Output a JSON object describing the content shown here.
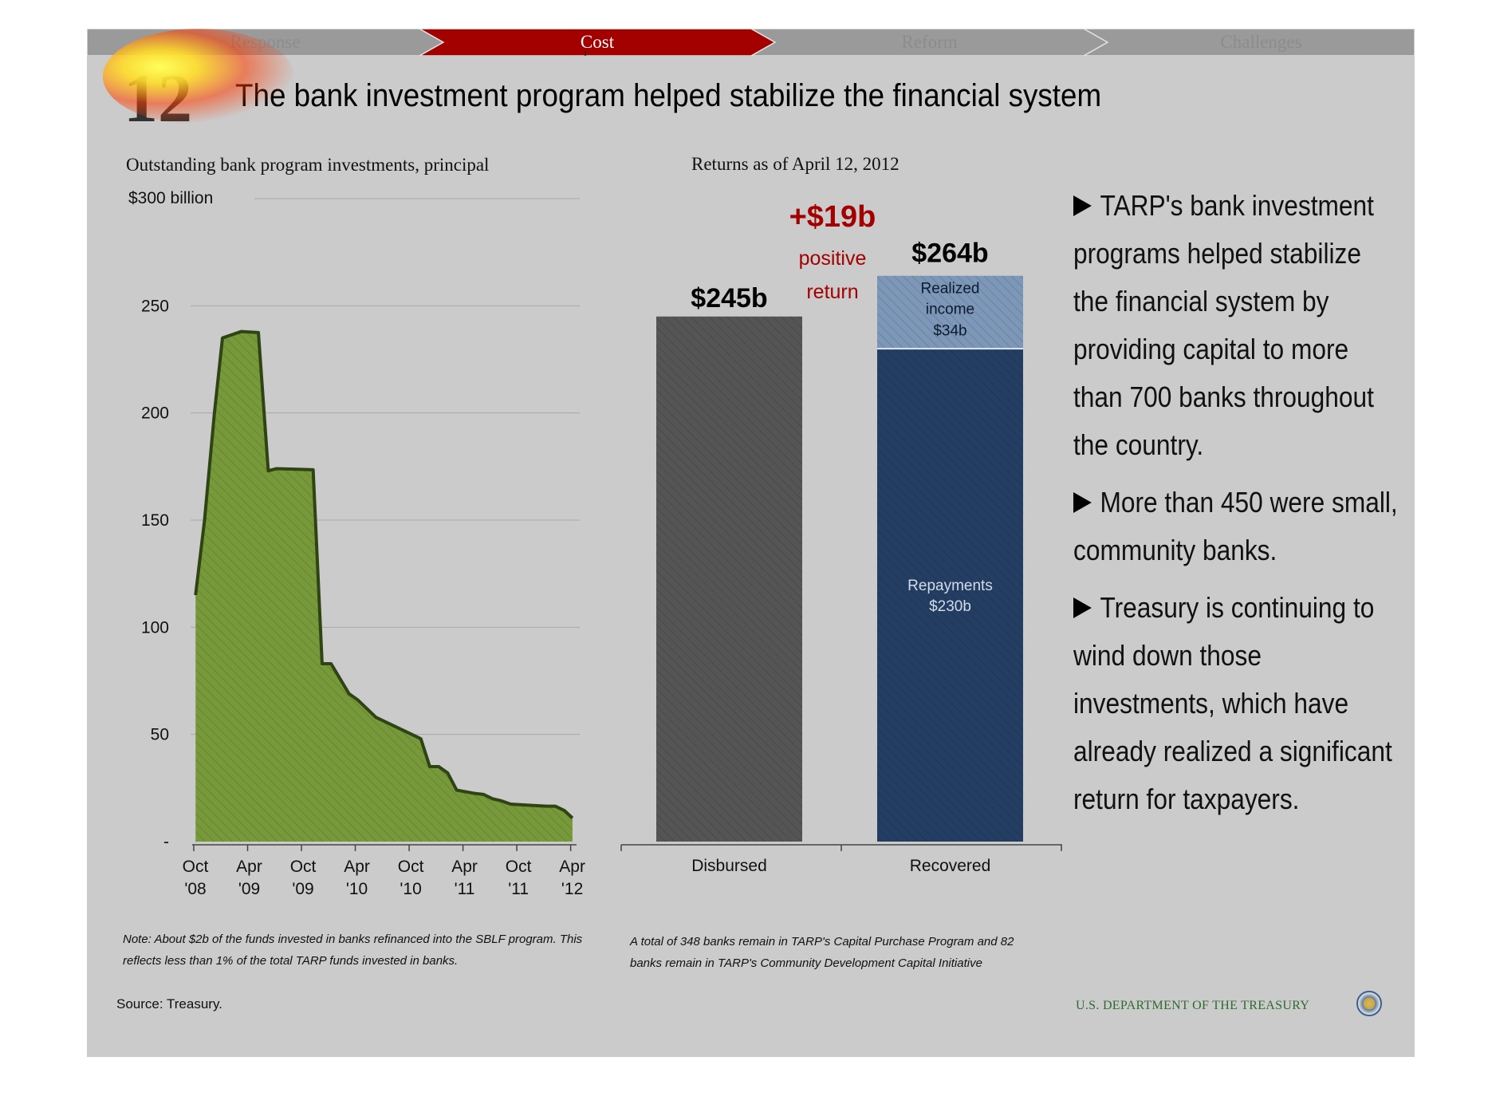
{
  "nav": {
    "tabs": [
      {
        "label": "Response",
        "active": false
      },
      {
        "label": "Cost",
        "active": true
      },
      {
        "label": "Reform",
        "active": false
      },
      {
        "label": "Challenges",
        "active": false
      }
    ],
    "colors": {
      "inactive": "#9a9a9a",
      "active": "#a30000",
      "inactive_text": "#8c8c8c",
      "active_text": "#ffffff"
    }
  },
  "slide_number": "12",
  "title": "The bank investment program helped stabilize the financial system",
  "chart_data": [
    {
      "type": "area",
      "title": "Outstanding bank program investments, principal",
      "top_label": "$300 billion",
      "ylim": [
        0,
        300
      ],
      "yticks": [
        {
          "value": 250,
          "label": "250"
        },
        {
          "value": 200,
          "label": "200"
        },
        {
          "value": 150,
          "label": "150"
        },
        {
          "value": 100,
          "label": "100"
        },
        {
          "value": 50,
          "label": "50"
        },
        {
          "value": 0,
          "label": "-"
        }
      ],
      "xticks": [
        {
          "t": 0,
          "line1": "Oct",
          "line2": "'08"
        },
        {
          "t": 6,
          "line1": "Apr",
          "line2": "'09"
        },
        {
          "t": 12,
          "line1": "Oct",
          "line2": "'09"
        },
        {
          "t": 18,
          "line1": "Apr",
          "line2": "'10"
        },
        {
          "t": 24,
          "line1": "Oct",
          "line2": "'10"
        },
        {
          "t": 30,
          "line1": "Apr",
          "line2": "'11"
        },
        {
          "t": 36,
          "line1": "Oct",
          "line2": "'11"
        },
        {
          "t": 42,
          "line1": "Apr",
          "line2": "'12"
        }
      ],
      "xlim": [
        0,
        42.3
      ],
      "points": [
        [
          0.2,
          115
        ],
        [
          1.2,
          150
        ],
        [
          2.3,
          200
        ],
        [
          3.2,
          235
        ],
        [
          5.3,
          238
        ],
        [
          7.2,
          237.5
        ],
        [
          8.3,
          173
        ],
        [
          9.2,
          174
        ],
        [
          13.3,
          173.5
        ],
        [
          14.3,
          83
        ],
        [
          15.3,
          83
        ],
        [
          16.3,
          76
        ],
        [
          17.3,
          69
        ],
        [
          18.3,
          66
        ],
        [
          20.3,
          58
        ],
        [
          21.3,
          56
        ],
        [
          23.3,
          52
        ],
        [
          25.3,
          48
        ],
        [
          26.3,
          35
        ],
        [
          27.3,
          35
        ],
        [
          28.3,
          32
        ],
        [
          29.3,
          24
        ],
        [
          31.3,
          22.5
        ],
        [
          32.3,
          22
        ],
        [
          33.3,
          20
        ],
        [
          34.3,
          19
        ],
        [
          35.3,
          17.5
        ],
        [
          37.3,
          17
        ],
        [
          39.3,
          16.5
        ],
        [
          40.3,
          16.5
        ],
        [
          41.3,
          14.5
        ],
        [
          42.2,
          11
        ]
      ],
      "fill_color": "#77993a",
      "line_color": "#2f4415",
      "note": "Note: About $2b of the funds invested in banks refinanced into the SBLF program. This reflects less than 1% of the total TARP funds invested in banks."
    },
    {
      "type": "bar",
      "title": "Returns as of April 12, 2012",
      "ylim": [
        0,
        300
      ],
      "categories": [
        "Disbursed",
        "Recovered"
      ],
      "disbursed": {
        "value": 245,
        "label": "$245b",
        "color": "#555555"
      },
      "recovered": {
        "total_label": "$264b",
        "segments": [
          {
            "name": "Repayments",
            "value_label": "$230b",
            "value": 230,
            "color": "#243e63"
          },
          {
            "name": "Realized income",
            "line1": "Realized",
            "line2": "income",
            "value_label": "$34b",
            "value": 34,
            "color": "#7d97b8"
          }
        ]
      },
      "positive_return": {
        "value": "+$19b",
        "line1": "positive",
        "line2": "return",
        "color": "#a30000"
      },
      "note": "A total of 348 banks remain in TARP's Capital Purchase Program and 82 banks remain in TARP's Community Development Capital Initiative"
    }
  ],
  "bullets": [
    "TARP's bank investment programs helped stabilize the financial system by providing capital to more than 700 banks throughout the country.",
    "More than 450 were small, community banks.",
    "Treasury is continuing to wind down those investments, which have already realized a significant return for taxpayers."
  ],
  "source": "Source: Treasury.",
  "footer": {
    "department": "U.S. DEPARTMENT OF THE TREASURY",
    "seal_icon": "treasury-seal-icon"
  }
}
